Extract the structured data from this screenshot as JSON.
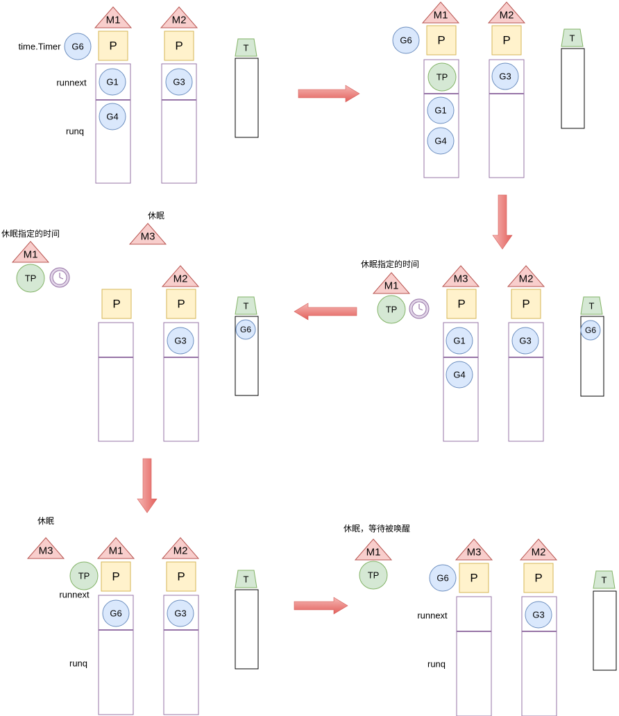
{
  "labels": {
    "timer": "time.Timer",
    "runnext": "runnext",
    "runq": "runq",
    "sleep": "休眠",
    "sleep_specified": "休眠指定的时间",
    "sleep_wait": "休眠，等待被唤醒"
  },
  "threads": {
    "m1": "M1",
    "m2": "M2",
    "m3": "M3"
  },
  "processor": "P",
  "timer_queue": "T",
  "goroutines": {
    "g1": "G1",
    "g3": "G3",
    "g4": "G4",
    "g6": "G6",
    "tp": "TP"
  },
  "colors": {
    "m_fill": "#f8cecc",
    "m_stroke": "#b85450",
    "p_fill": "#fff2cc",
    "p_stroke": "#d6b656",
    "g_fill": "#dae8fc",
    "g_stroke": "#6c8ebf",
    "tp_fill": "#d5e8d4",
    "tp_stroke": "#82b366",
    "queue_stroke": "#9673a6",
    "clock_fill": "#e1d5e7",
    "clock_stroke": "#9673a6",
    "arrow_fill": "#ea6b66"
  },
  "icons": {
    "clock": "clock-icon",
    "arrow": "transition-arrow-icon"
  }
}
